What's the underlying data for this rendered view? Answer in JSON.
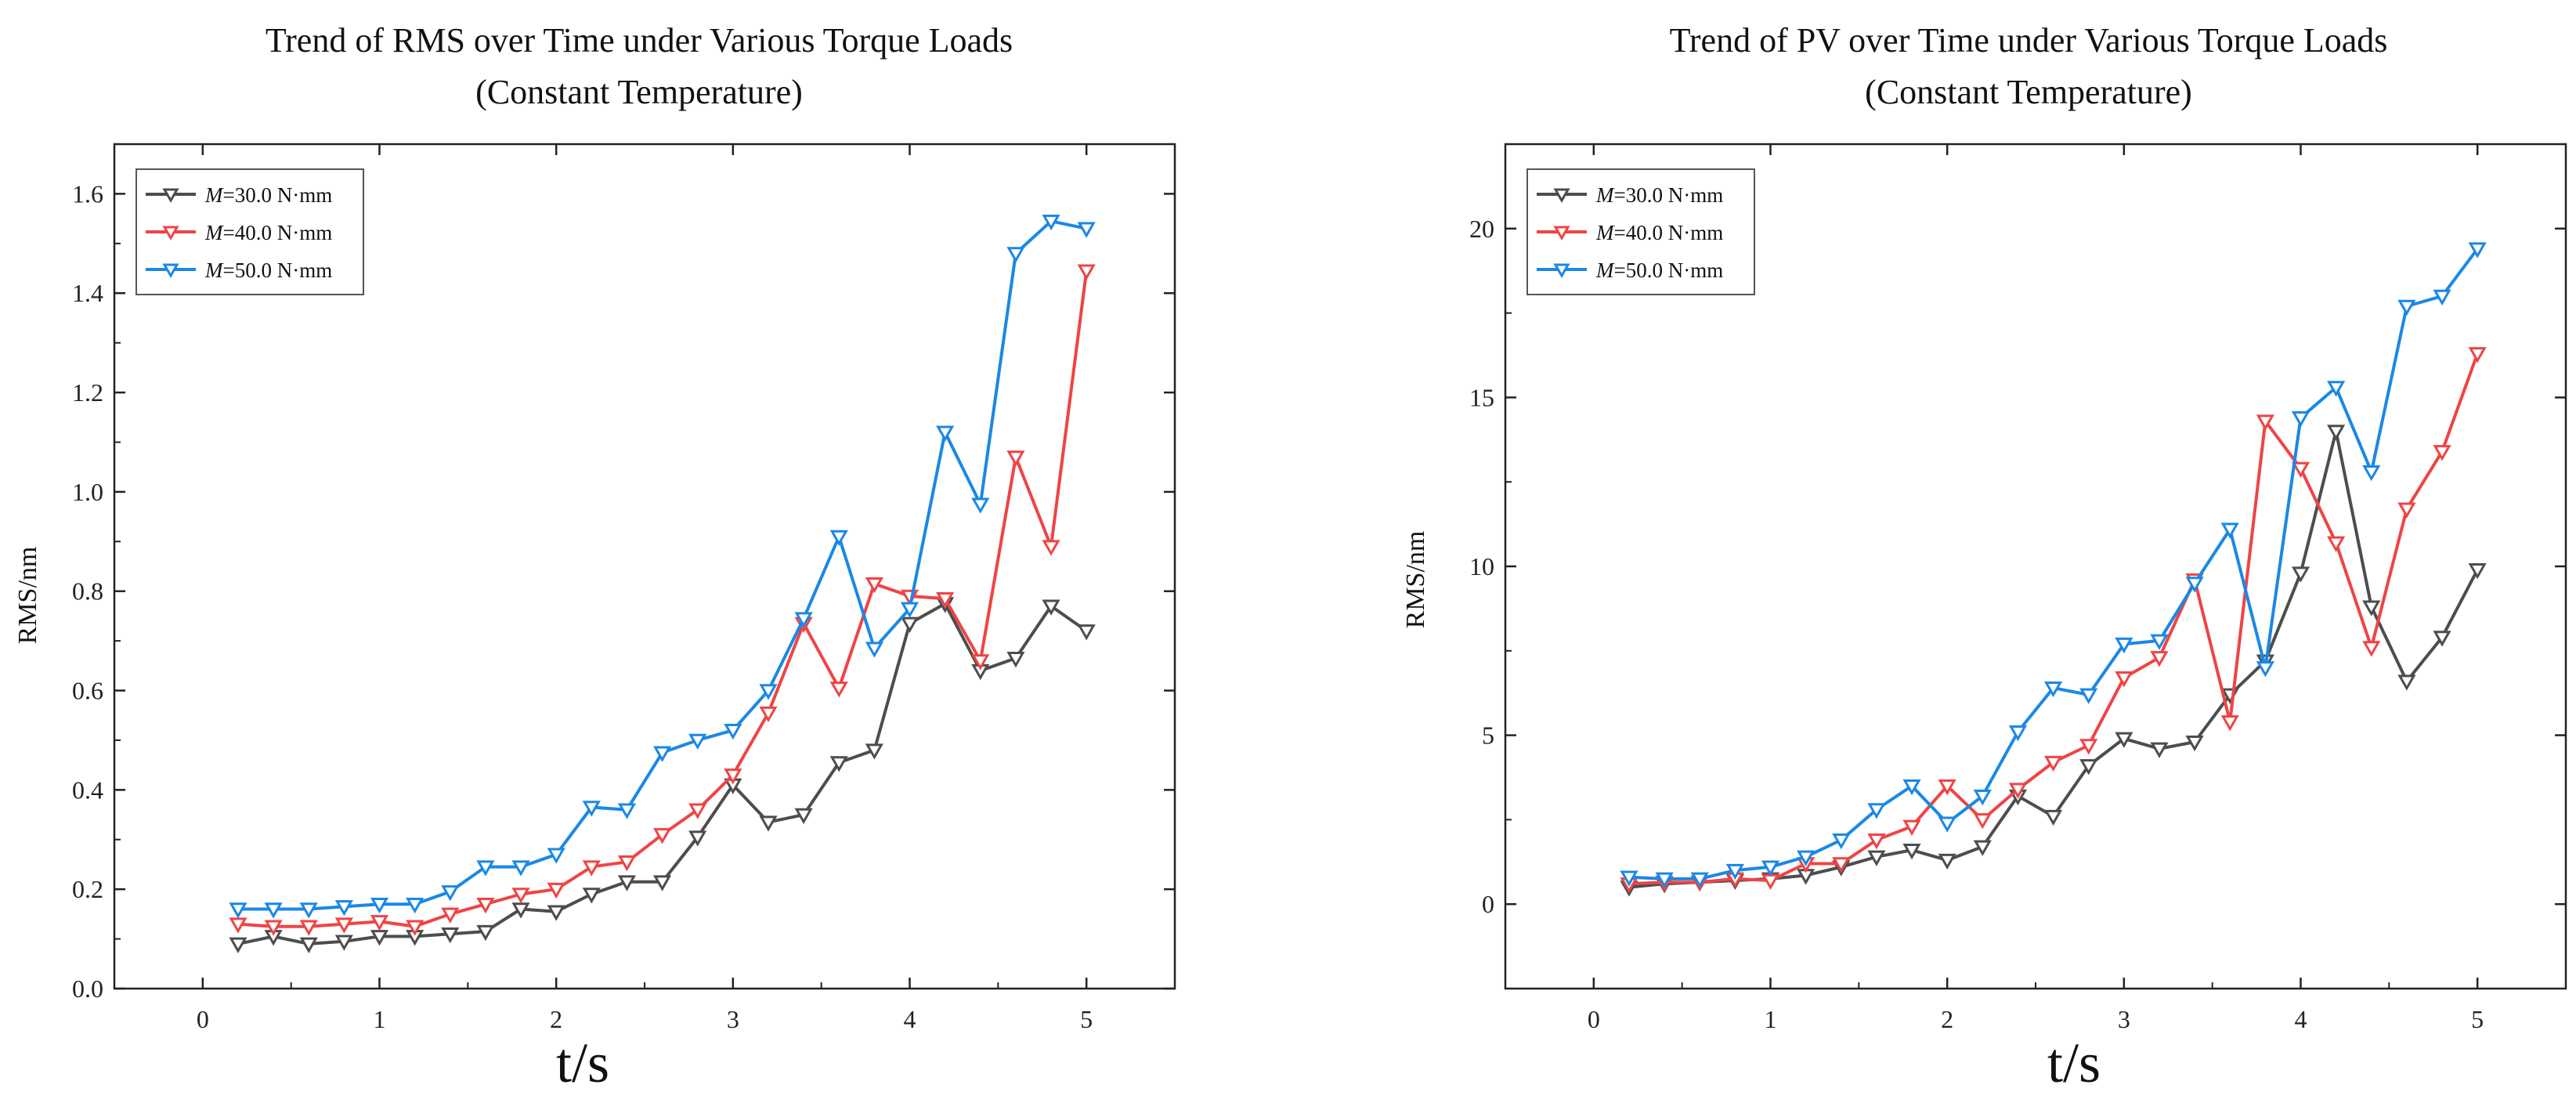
{
  "chart_data": [
    {
      "type": "line",
      "title_line1": "Trend of RMS over Time under Various Torque Loads",
      "title_line2": "(Constant Temperature)",
      "xlabel": "t/s",
      "ylabel": "RMS/nm",
      "xlim": [
        -0.5,
        5.5
      ],
      "ylim": [
        0,
        1.7
      ],
      "xticks": [
        0,
        1,
        2,
        3,
        4,
        5
      ],
      "yticks": [
        0.0,
        0.2,
        0.4,
        0.6,
        0.8,
        1.0,
        1.2,
        1.4,
        1.6
      ],
      "ytick_decimals": 1,
      "legend_position": "top-left",
      "x": [
        0.2,
        0.4,
        0.6,
        0.8,
        1.0,
        1.2,
        1.4,
        1.6,
        1.8,
        2.0,
        2.2,
        2.4,
        2.6,
        2.8,
        3.0,
        3.2,
        3.4,
        3.6,
        3.8,
        4.0,
        4.2,
        4.4,
        4.6,
        4.8,
        5.0
      ],
      "series": [
        {
          "label_var": "M",
          "label_rest": "=30.0 N·mm",
          "color": "#4d4d4d",
          "values": [
            0.09,
            0.105,
            0.09,
            0.095,
            0.105,
            0.105,
            0.11,
            0.115,
            0.16,
            0.155,
            0.19,
            0.215,
            0.215,
            0.305,
            0.41,
            0.335,
            0.35,
            0.455,
            0.48,
            0.735,
            0.775,
            0.64,
            0.665,
            0.77,
            0.72
          ]
        },
        {
          "label_var": "M",
          "label_rest": "=40.0 N·mm",
          "color": "#ef4444",
          "values": [
            0.13,
            0.125,
            0.125,
            0.13,
            0.135,
            0.125,
            0.15,
            0.17,
            0.19,
            0.2,
            0.245,
            0.255,
            0.31,
            0.36,
            0.43,
            0.555,
            0.735,
            0.605,
            0.815,
            0.79,
            0.785,
            0.66,
            1.07,
            0.89,
            1.445
          ]
        },
        {
          "label_var": "M",
          "label_rest": "=50.0 N·mm",
          "color": "#1a88e6",
          "values": [
            0.16,
            0.16,
            0.16,
            0.165,
            0.17,
            0.17,
            0.195,
            0.245,
            0.245,
            0.27,
            0.365,
            0.36,
            0.475,
            0.5,
            0.52,
            0.6,
            0.745,
            0.91,
            0.685,
            0.765,
            1.12,
            0.975,
            1.48,
            1.545,
            1.53
          ]
        }
      ]
    },
    {
      "type": "line",
      "title_line1": "Trend of PV over Time under Various Torque Loads",
      "title_line2": "(Constant Temperature)",
      "xlabel": "t/s",
      "ylabel": "RMS/nm",
      "xlim": [
        -0.5,
        5.5
      ],
      "ylim": [
        -2.5,
        22.5
      ],
      "xticks": [
        0,
        1,
        2,
        3,
        4,
        5
      ],
      "yticks": [
        0,
        5,
        10,
        15,
        20
      ],
      "ytick_decimals": 0,
      "legend_position": "top-left",
      "x": [
        0.2,
        0.4,
        0.6,
        0.8,
        1.0,
        1.2,
        1.4,
        1.6,
        1.8,
        2.0,
        2.2,
        2.4,
        2.6,
        2.8,
        3.0,
        3.2,
        3.4,
        3.6,
        3.8,
        4.0,
        4.2,
        4.4,
        4.6,
        4.8,
        5.0
      ],
      "series": [
        {
          "label_var": "M",
          "label_rest": "=30.0 N·mm",
          "color": "#4d4d4d",
          "values": [
            0.5,
            0.6,
            0.65,
            0.7,
            0.75,
            0.85,
            1.1,
            1.4,
            1.6,
            1.3,
            1.7,
            3.2,
            2.6,
            4.1,
            4.9,
            4.6,
            4.8,
            6.2,
            7.2,
            9.8,
            14.0,
            8.8,
            6.6,
            7.9,
            9.9
          ]
        },
        {
          "label_var": "M",
          "label_rest": "=40.0 N·mm",
          "color": "#ef4444",
          "values": [
            0.6,
            0.65,
            0.65,
            0.75,
            0.7,
            1.2,
            1.2,
            1.9,
            2.3,
            3.5,
            2.5,
            3.4,
            4.2,
            4.7,
            6.7,
            7.3,
            9.6,
            5.4,
            14.3,
            12.9,
            10.7,
            7.6,
            11.7,
            13.4,
            16.3
          ]
        },
        {
          "label_var": "M",
          "label_rest": "=50.0 N·mm",
          "color": "#1a88e6",
          "values": [
            0.8,
            0.75,
            0.75,
            1.0,
            1.1,
            1.4,
            1.9,
            2.8,
            3.5,
            2.4,
            3.2,
            5.1,
            6.4,
            6.2,
            7.7,
            7.8,
            9.5,
            11.1,
            7.0,
            14.4,
            15.3,
            12.8,
            17.7,
            18.0,
            19.4
          ]
        }
      ]
    }
  ]
}
